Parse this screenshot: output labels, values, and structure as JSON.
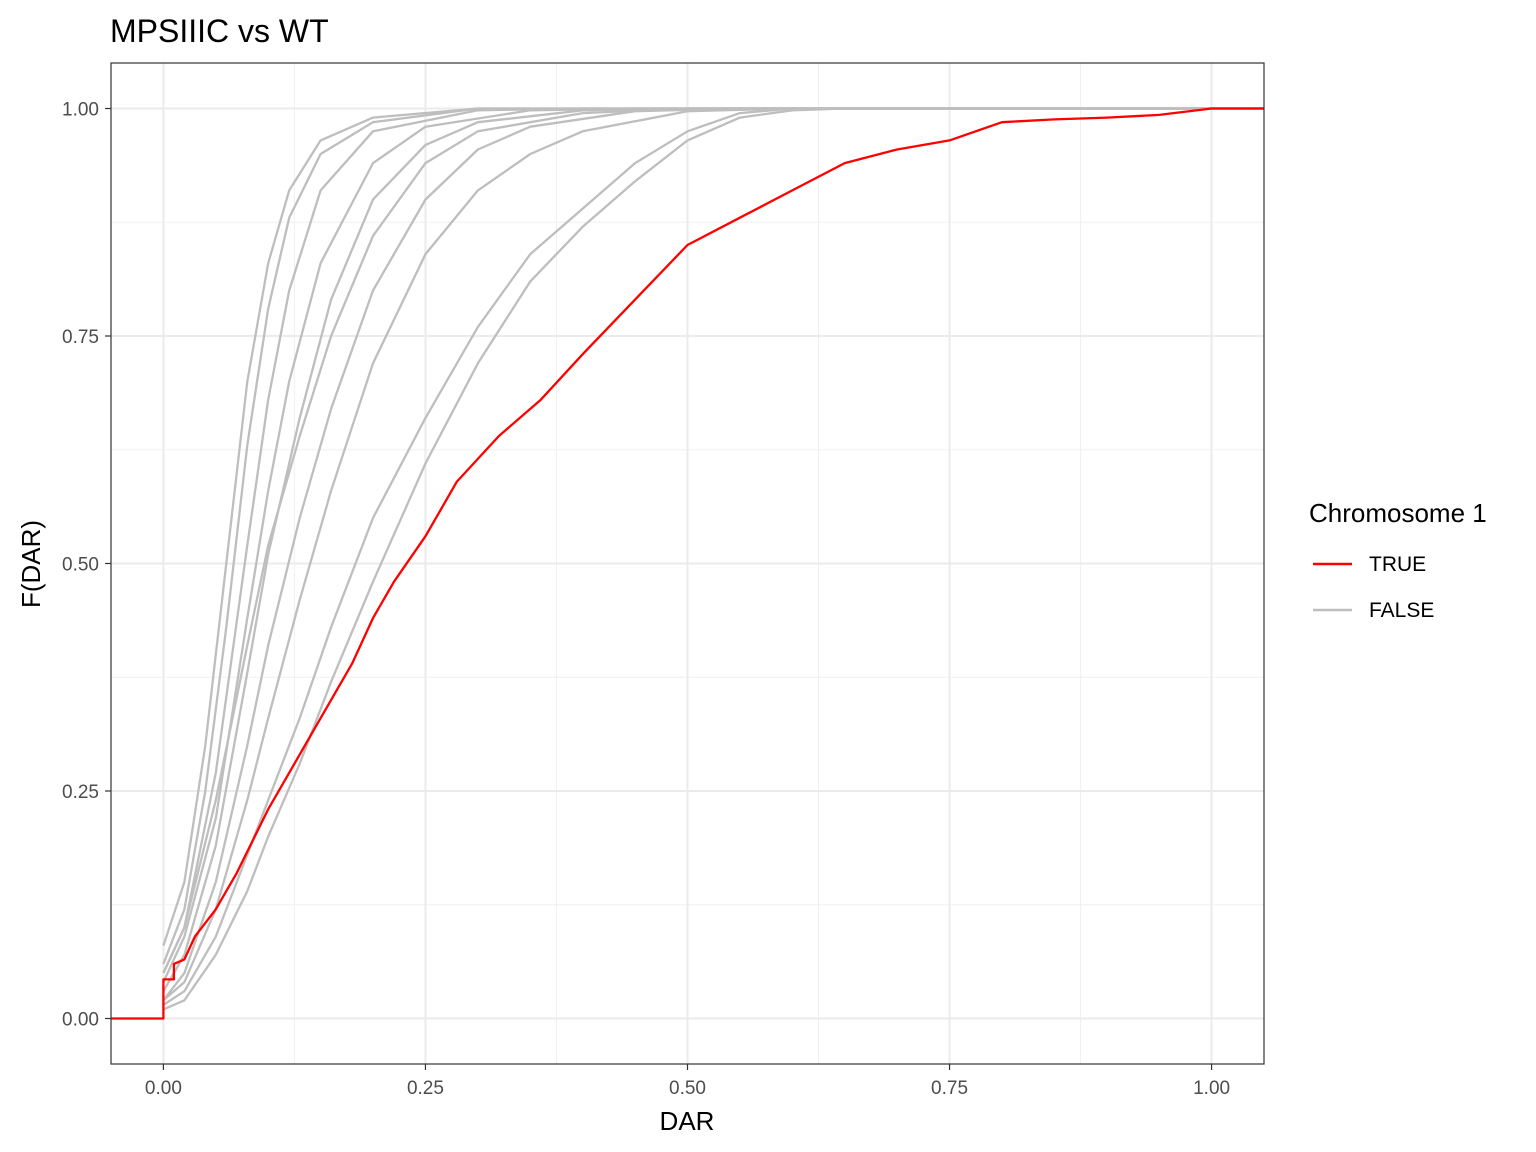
{
  "chart_data": {
    "type": "line",
    "title": "MPSIIIC vs WT",
    "xlabel": "DAR",
    "ylabel": "F(DAR)",
    "xlim": [
      -0.05,
      1.05
    ],
    "ylim": [
      -0.05,
      1.05
    ],
    "x_ticks": [
      0.0,
      0.25,
      0.5,
      0.75,
      1.0
    ],
    "x_tick_labels": [
      "0.00",
      "0.25",
      "0.50",
      "0.75",
      "1.00"
    ],
    "y_ticks": [
      0.0,
      0.25,
      0.5,
      0.75,
      1.0
    ],
    "y_tick_labels": [
      "0.00",
      "0.25",
      "0.50",
      "0.75",
      "1.00"
    ],
    "grid": true,
    "legend": {
      "title": "Chromosome 1",
      "position": "right",
      "entries": [
        {
          "label": "TRUE",
          "color": "#ff0000"
        },
        {
          "label": "FALSE",
          "color": "#bebebe"
        }
      ]
    },
    "series": [
      {
        "name": "TRUE",
        "color": "#ff0000",
        "points": [
          [
            -0.05,
            0
          ],
          [
            0,
            0
          ],
          [
            0,
            0.043
          ],
          [
            0.01,
            0.043
          ],
          [
            0.01,
            0.06
          ],
          [
            0.02,
            0.065
          ],
          [
            0.03,
            0.09
          ],
          [
            0.05,
            0.12
          ],
          [
            0.07,
            0.16
          ],
          [
            0.1,
            0.23
          ],
          [
            0.12,
            0.27
          ],
          [
            0.15,
            0.33
          ],
          [
            0.18,
            0.39
          ],
          [
            0.2,
            0.44
          ],
          [
            0.22,
            0.48
          ],
          [
            0.25,
            0.53
          ],
          [
            0.28,
            0.59
          ],
          [
            0.32,
            0.64
          ],
          [
            0.36,
            0.68
          ],
          [
            0.4,
            0.73
          ],
          [
            0.45,
            0.79
          ],
          [
            0.5,
            0.85
          ],
          [
            0.55,
            0.88
          ],
          [
            0.6,
            0.91
          ],
          [
            0.65,
            0.94
          ],
          [
            0.7,
            0.955
          ],
          [
            0.75,
            0.965
          ],
          [
            0.8,
            0.985
          ],
          [
            0.85,
            0.988
          ],
          [
            0.9,
            0.99
          ],
          [
            0.95,
            0.993
          ],
          [
            1.0,
            1.0
          ],
          [
            1.05,
            1.0
          ]
        ]
      },
      {
        "name": "FALSE",
        "color": "#bebebe",
        "points": [
          [
            0,
            0.08
          ],
          [
            0.02,
            0.15
          ],
          [
            0.04,
            0.3
          ],
          [
            0.06,
            0.5
          ],
          [
            0.08,
            0.7
          ],
          [
            0.1,
            0.83
          ],
          [
            0.12,
            0.91
          ],
          [
            0.15,
            0.965
          ],
          [
            0.2,
            0.99
          ],
          [
            0.3,
            1.0
          ],
          [
            1.05,
            1.0
          ]
        ]
      },
      {
        "name": "FALSE",
        "color": "#bebebe",
        "points": [
          [
            0,
            0.06
          ],
          [
            0.02,
            0.12
          ],
          [
            0.04,
            0.25
          ],
          [
            0.06,
            0.43
          ],
          [
            0.08,
            0.63
          ],
          [
            0.1,
            0.78
          ],
          [
            0.12,
            0.88
          ],
          [
            0.15,
            0.95
          ],
          [
            0.2,
            0.985
          ],
          [
            0.3,
            1.0
          ],
          [
            1.05,
            1.0
          ]
        ]
      },
      {
        "name": "FALSE",
        "color": "#bebebe",
        "points": [
          [
            0,
            0.05
          ],
          [
            0.02,
            0.1
          ],
          [
            0.05,
            0.27
          ],
          [
            0.08,
            0.52
          ],
          [
            0.1,
            0.68
          ],
          [
            0.12,
            0.8
          ],
          [
            0.15,
            0.91
          ],
          [
            0.2,
            0.975
          ],
          [
            0.3,
            0.998
          ],
          [
            0.4,
            1.0
          ],
          [
            1.05,
            1.0
          ]
        ]
      },
      {
        "name": "FALSE",
        "color": "#bebebe",
        "points": [
          [
            0,
            0.04
          ],
          [
            0.02,
            0.09
          ],
          [
            0.05,
            0.22
          ],
          [
            0.08,
            0.44
          ],
          [
            0.1,
            0.58
          ],
          [
            0.12,
            0.7
          ],
          [
            0.15,
            0.83
          ],
          [
            0.2,
            0.94
          ],
          [
            0.25,
            0.98
          ],
          [
            0.35,
            0.998
          ],
          [
            0.45,
            1.0
          ],
          [
            1.05,
            1.0
          ]
        ]
      },
      {
        "name": "FALSE",
        "color": "#bebebe",
        "points": [
          [
            0,
            0.03
          ],
          [
            0.02,
            0.07
          ],
          [
            0.05,
            0.19
          ],
          [
            0.08,
            0.38
          ],
          [
            0.1,
            0.51
          ],
          [
            0.13,
            0.66
          ],
          [
            0.16,
            0.79
          ],
          [
            0.2,
            0.9
          ],
          [
            0.25,
            0.96
          ],
          [
            0.3,
            0.985
          ],
          [
            0.4,
            0.998
          ],
          [
            0.5,
            1.0
          ],
          [
            1.05,
            1.0
          ]
        ]
      },
      {
        "name": "FALSE",
        "color": "#bebebe",
        "points": [
          [
            0,
            0.05
          ],
          [
            0.02,
            0.1
          ],
          [
            0.05,
            0.24
          ],
          [
            0.08,
            0.41
          ],
          [
            0.1,
            0.52
          ],
          [
            0.13,
            0.64
          ],
          [
            0.16,
            0.75
          ],
          [
            0.2,
            0.86
          ],
          [
            0.25,
            0.94
          ],
          [
            0.3,
            0.975
          ],
          [
            0.4,
            0.995
          ],
          [
            0.5,
            1.0
          ],
          [
            1.05,
            1.0
          ]
        ]
      },
      {
        "name": "FALSE",
        "color": "#bebebe",
        "points": [
          [
            0,
            0.02
          ],
          [
            0.02,
            0.05
          ],
          [
            0.05,
            0.15
          ],
          [
            0.08,
            0.3
          ],
          [
            0.1,
            0.41
          ],
          [
            0.13,
            0.55
          ],
          [
            0.16,
            0.67
          ],
          [
            0.2,
            0.8
          ],
          [
            0.25,
            0.9
          ],
          [
            0.3,
            0.955
          ],
          [
            0.35,
            0.98
          ],
          [
            0.45,
            0.997
          ],
          [
            0.55,
            1.0
          ],
          [
            1.05,
            1.0
          ]
        ]
      },
      {
        "name": "FALSE",
        "color": "#bebebe",
        "points": [
          [
            0,
            0.02
          ],
          [
            0.02,
            0.04
          ],
          [
            0.05,
            0.12
          ],
          [
            0.08,
            0.24
          ],
          [
            0.1,
            0.33
          ],
          [
            0.13,
            0.46
          ],
          [
            0.16,
            0.58
          ],
          [
            0.2,
            0.72
          ],
          [
            0.25,
            0.84
          ],
          [
            0.3,
            0.91
          ],
          [
            0.35,
            0.95
          ],
          [
            0.4,
            0.975
          ],
          [
            0.5,
            0.997
          ],
          [
            0.6,
            1.0
          ],
          [
            1.05,
            1.0
          ]
        ]
      },
      {
        "name": "FALSE",
        "color": "#bebebe",
        "points": [
          [
            0,
            0.015
          ],
          [
            0.02,
            0.03
          ],
          [
            0.05,
            0.09
          ],
          [
            0.08,
            0.18
          ],
          [
            0.1,
            0.24
          ],
          [
            0.13,
            0.33
          ],
          [
            0.16,
            0.43
          ],
          [
            0.2,
            0.55
          ],
          [
            0.25,
            0.66
          ],
          [
            0.3,
            0.76
          ],
          [
            0.35,
            0.84
          ],
          [
            0.4,
            0.89
          ],
          [
            0.45,
            0.94
          ],
          [
            0.5,
            0.975
          ],
          [
            0.55,
            0.995
          ],
          [
            0.6,
            1.0
          ],
          [
            1.05,
            1.0
          ]
        ]
      },
      {
        "name": "FALSE",
        "color": "#bebebe",
        "points": [
          [
            0,
            0.01
          ],
          [
            0.02,
            0.02
          ],
          [
            0.05,
            0.07
          ],
          [
            0.08,
            0.14
          ],
          [
            0.1,
            0.2
          ],
          [
            0.13,
            0.28
          ],
          [
            0.16,
            0.37
          ],
          [
            0.2,
            0.48
          ],
          [
            0.25,
            0.61
          ],
          [
            0.3,
            0.72
          ],
          [
            0.35,
            0.81
          ],
          [
            0.4,
            0.87
          ],
          [
            0.45,
            0.92
          ],
          [
            0.5,
            0.965
          ],
          [
            0.55,
            0.99
          ],
          [
            0.6,
            0.998
          ],
          [
            0.65,
            1.0
          ],
          [
            1.05,
            1.0
          ]
        ]
      }
    ]
  }
}
